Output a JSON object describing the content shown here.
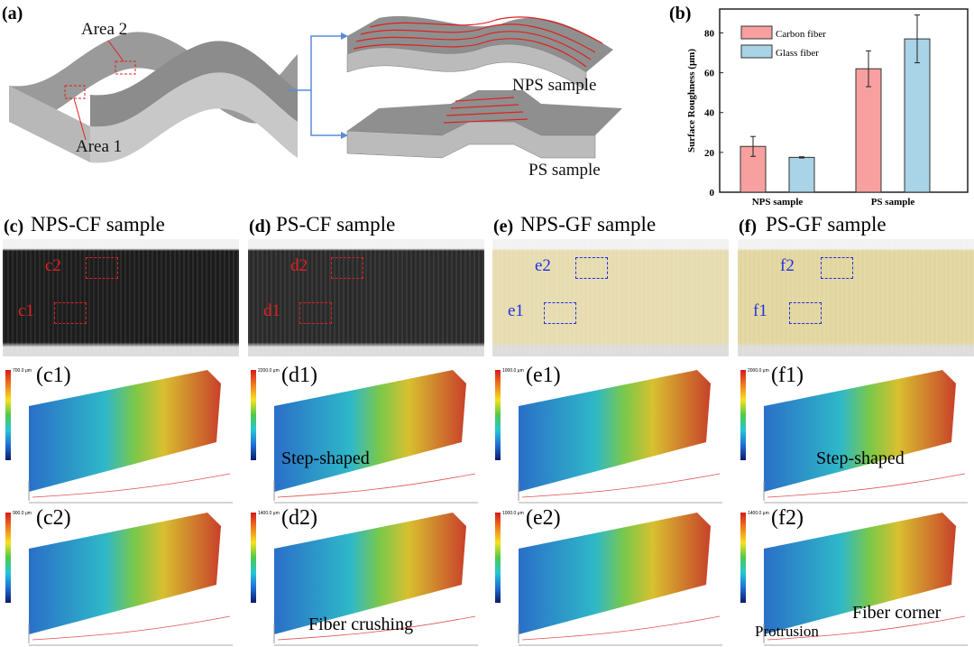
{
  "panel_a": {
    "label": "(a)",
    "area2": "Area 2",
    "area1": "Area 1",
    "nps": "NPS sample",
    "ps": "PS sample"
  },
  "chart_data": {
    "type": "bar",
    "label": "(b)",
    "title": "",
    "xlabel": "",
    "ylabel": "Surface Roughness (μm)",
    "categories": [
      "NPS sample",
      "PS sample"
    ],
    "series": [
      {
        "name": "Carbon fiber",
        "color": "#f8a0a0",
        "values": [
          23,
          62
        ],
        "errors": [
          5,
          9
        ]
      },
      {
        "name": "Glass fiber",
        "color": "#a9d3e6",
        "values": [
          17.5,
          77
        ],
        "errors": [
          0.3,
          12
        ]
      }
    ],
    "ylim": [
      0,
      92
    ],
    "yticks": [
      0,
      20,
      40,
      60,
      80
    ],
    "legend": "top-left",
    "grid": false
  },
  "panels": [
    {
      "label": "(c)",
      "title": "NPS-CF sample",
      "photo_color": "#1c1c1c",
      "box_color": "#e02020",
      "top_tag": "c2",
      "bottom_tag": "c1",
      "maps": [
        {
          "label": "(c1)",
          "cmax": "700.0 μm",
          "annotation": ""
        },
        {
          "label": "(c2)",
          "cmax": "900.0 μm",
          "annotation": ""
        }
      ]
    },
    {
      "label": "(d)",
      "title": "PS-CF sample",
      "photo_color": "#2a2a2a",
      "box_color": "#e02020",
      "top_tag": "d2",
      "bottom_tag": "d1",
      "maps": [
        {
          "label": "(d1)",
          "cmax": "2200.0 μm",
          "annotation": "Step-shaped"
        },
        {
          "label": "(d2)",
          "cmax": "1400.0 μm",
          "annotation": "Fiber crushing"
        }
      ]
    },
    {
      "label": "(e)",
      "title": "NPS-GF sample",
      "photo_color": "#e6dcb0",
      "box_color": "#2030e0",
      "top_tag": "e2",
      "bottom_tag": "e1",
      "maps": [
        {
          "label": "(e1)",
          "cmax": "1000.0 μm",
          "annotation": ""
        },
        {
          "label": "(e2)",
          "cmax": "1000.0 μm",
          "annotation": ""
        }
      ]
    },
    {
      "label": "(f)",
      "title": "PS-GF sample",
      "photo_color": "#e2d6a0",
      "box_color": "#2030e0",
      "top_tag": "f2",
      "bottom_tag": "f1",
      "maps": [
        {
          "label": "(f1)",
          "cmax": "2000.0 μm",
          "annotation": "Step-shaped"
        },
        {
          "label": "(f2)",
          "cmax": "1400.0 μm",
          "annotation": "Fiber corner",
          "annotation2": "Protrusion"
        }
      ]
    }
  ]
}
